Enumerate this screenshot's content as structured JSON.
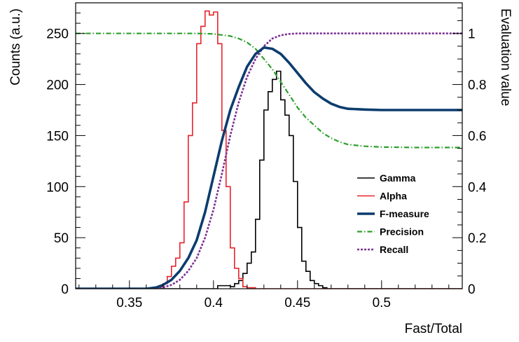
{
  "chart_data": {
    "type": "line",
    "xlabel": "Fast/Total",
    "ylabel_left": "Counts (a.u.)",
    "ylabel_right": "Evaluation value",
    "xlim": [
      0.318,
      0.548
    ],
    "ylim_left": [
      0,
      280
    ],
    "ylim_right": [
      0,
      1.12
    ],
    "x_ticks": [
      "0.35",
      "0.4",
      "0.45",
      "0.5"
    ],
    "y_ticks_left": [
      "0",
      "50",
      "100",
      "150",
      "200",
      "250"
    ],
    "y_ticks_right": [
      "0",
      "0.2",
      "0.4",
      "0.6",
      "0.8",
      "1"
    ],
    "legend_position": "right-center",
    "histograms": [
      {
        "name": "Gamma",
        "color": "#000000",
        "bin_width": 0.0025,
        "bin_start": 0.3675,
        "counts": [
          0,
          0,
          0,
          0,
          0,
          0,
          0,
          0,
          0,
          0,
          0,
          0,
          0,
          0,
          3,
          3,
          3,
          2,
          5,
          8,
          15,
          25,
          36,
          68,
          126,
          175,
          193,
          205,
          213,
          185,
          170,
          150,
          105,
          60,
          27,
          17,
          8,
          5,
          3,
          1,
          0
        ]
      },
      {
        "name": "Alpha",
        "color": "#e8232a",
        "bin_width": 0.0025,
        "bin_start": 0.3625,
        "counts": [
          1,
          1,
          2,
          5,
          12,
          22,
          30,
          45,
          85,
          150,
          182,
          240,
          257,
          272,
          268,
          271,
          240,
          155,
          100,
          40,
          20,
          10,
          2,
          1,
          1,
          0
        ]
      }
    ],
    "series": [
      {
        "name": "F-measure",
        "color": "#0c3c6e",
        "style": "solid-thick",
        "x": [
          0.318,
          0.36,
          0.366,
          0.37,
          0.375,
          0.38,
          0.385,
          0.39,
          0.395,
          0.4,
          0.405,
          0.41,
          0.415,
          0.42,
          0.425,
          0.43,
          0.435,
          0.44,
          0.445,
          0.45,
          0.455,
          0.46,
          0.465,
          0.47,
          0.475,
          0.48,
          0.49,
          0.5,
          0.52,
          0.548
        ],
        "y": [
          0,
          0,
          0.005,
          0.015,
          0.035,
          0.07,
          0.12,
          0.19,
          0.3,
          0.44,
          0.58,
          0.7,
          0.79,
          0.87,
          0.92,
          0.945,
          0.94,
          0.92,
          0.885,
          0.845,
          0.805,
          0.77,
          0.745,
          0.725,
          0.712,
          0.705,
          0.702,
          0.7,
          0.7,
          0.7
        ]
      },
      {
        "name": "Precision",
        "color": "#2ca02c",
        "style": "dash-dot",
        "x": [
          0.318,
          0.39,
          0.4,
          0.41,
          0.415,
          0.42,
          0.425,
          0.43,
          0.435,
          0.44,
          0.445,
          0.45,
          0.455,
          0.46,
          0.465,
          0.47,
          0.475,
          0.48,
          0.49,
          0.5,
          0.52,
          0.548
        ],
        "y": [
          1,
          1,
          0.998,
          0.99,
          0.98,
          0.965,
          0.94,
          0.9,
          0.86,
          0.81,
          0.76,
          0.71,
          0.67,
          0.64,
          0.61,
          0.59,
          0.575,
          0.565,
          0.558,
          0.555,
          0.553,
          0.553
        ]
      },
      {
        "name": "Recall",
        "color": "#7b3294",
        "style": "dotted",
        "x": [
          0.318,
          0.365,
          0.37,
          0.375,
          0.38,
          0.385,
          0.39,
          0.395,
          0.4,
          0.405,
          0.41,
          0.415,
          0.42,
          0.425,
          0.43,
          0.435,
          0.44,
          0.445,
          0.45,
          0.46,
          0.47,
          0.548
        ],
        "y": [
          0,
          0,
          0.005,
          0.015,
          0.035,
          0.07,
          0.12,
          0.2,
          0.31,
          0.45,
          0.6,
          0.73,
          0.83,
          0.9,
          0.95,
          0.98,
          0.993,
          0.998,
          1,
          1,
          1,
          1
        ]
      }
    ]
  }
}
